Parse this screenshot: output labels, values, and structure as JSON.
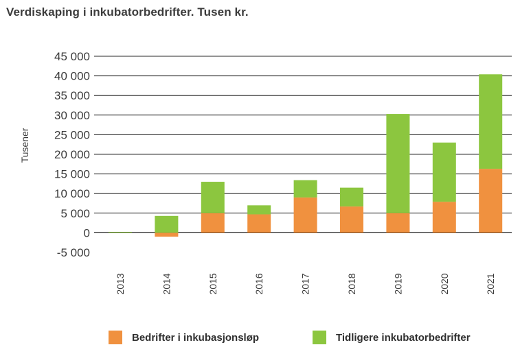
{
  "chart_data": {
    "type": "bar",
    "stacked": true,
    "title": "Verdiskaping i inkubatorbedrifter. Tusen kr.",
    "xlabel": "",
    "ylabel": "Tusener",
    "ylim": [
      -5000,
      45000
    ],
    "yticks": [
      -5000,
      0,
      5000,
      10000,
      15000,
      20000,
      25000,
      30000,
      35000,
      40000,
      45000
    ],
    "ytick_labels": [
      "-5 000",
      "0",
      "5 000",
      "10 000",
      "15 000",
      "20 000",
      "25 000",
      "30 000",
      "35 000",
      "40 000",
      "45 000"
    ],
    "categories": [
      "2013",
      "2014",
      "2015",
      "2016",
      "2017",
      "2018",
      "2019",
      "2020",
      "2021"
    ],
    "series": [
      {
        "name": "Bedrifter i inkubasjonsløp",
        "color": "#f0913f",
        "values": [
          0,
          -1000,
          5000,
          4700,
          9000,
          6700,
          5000,
          7900,
          16300
        ]
      },
      {
        "name": "Tidligere inkubatorbedrifter",
        "color": "#8cc63f",
        "values": [
          200,
          4300,
          8000,
          2300,
          4400,
          4800,
          25300,
          15100,
          24100
        ]
      }
    ],
    "grid": true,
    "legend": "bottom"
  }
}
